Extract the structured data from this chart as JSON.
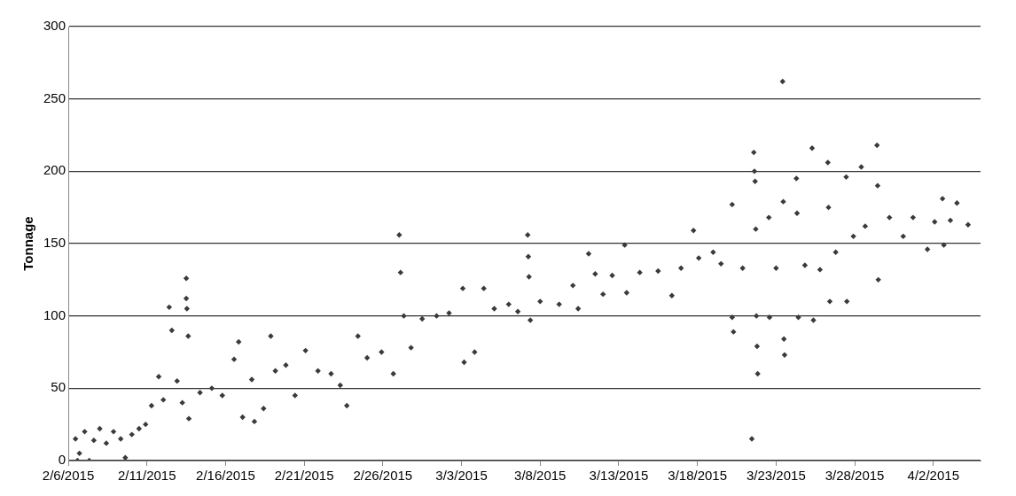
{
  "chart_data": {
    "type": "scatter",
    "ylabel": "Tonnage",
    "xlim": [
      "2015-02-06",
      "2015-04-05"
    ],
    "xticks": [
      {
        "value": "2015-02-06",
        "label": "2/6/2015"
      },
      {
        "value": "2015-02-11",
        "label": "2/11/2015"
      },
      {
        "value": "2015-02-16",
        "label": "2/16/2015"
      },
      {
        "value": "2015-02-21",
        "label": "2/21/2015"
      },
      {
        "value": "2015-02-26",
        "label": "2/26/2015"
      },
      {
        "value": "2015-03-03",
        "label": "3/3/2015"
      },
      {
        "value": "2015-03-08",
        "label": "3/8/2015"
      },
      {
        "value": "2015-03-13",
        "label": "3/13/2015"
      },
      {
        "value": "2015-03-18",
        "label": "3/18/2015"
      },
      {
        "value": "2015-03-23",
        "label": "3/23/2015"
      },
      {
        "value": "2015-03-28",
        "label": "3/28/2015"
      },
      {
        "value": "2015-04-02",
        "label": "4/2/2015"
      }
    ],
    "ylim": [
      0,
      300
    ],
    "yticks": [
      0,
      50,
      100,
      150,
      200,
      250,
      300
    ],
    "grid": "y",
    "legend": false,
    "marker": "diamond",
    "series": [
      {
        "color": "#3a3a3a",
        "x": [
          "2015-02-06T11:00",
          "2015-02-06T14:00",
          "2015-02-06T17:00",
          "2015-02-07T01:00",
          "2015-02-07T08:00",
          "2015-02-07T15:00",
          "2015-02-08T00:00",
          "2015-02-08T10:00",
          "2015-02-08T21:00",
          "2015-02-09T08:00",
          "2015-02-09T15:00",
          "2015-02-10T01:00",
          "2015-02-10T12:00",
          "2015-02-10T22:00",
          "2015-02-11T07:00",
          "2015-02-11T18:00",
          "2015-02-12T01:00",
          "2015-02-12T10:00",
          "2015-02-12T14:00",
          "2015-02-12T22:00",
          "2015-02-13T06:00",
          "2015-02-13T12:00",
          "2015-02-13T12:00",
          "2015-02-13T13:00",
          "2015-02-13T15:00",
          "2015-02-13T16:00",
          "2015-02-14T09:00",
          "2015-02-15T03:00",
          "2015-02-15T19:00",
          "2015-02-16T13:00",
          "2015-02-16T20:00",
          "2015-02-17T02:00",
          "2015-02-17T16:00",
          "2015-02-17T20:00",
          "2015-02-18T10:00",
          "2015-02-18T21:00",
          "2015-02-19T04:00",
          "2015-02-19T20:00",
          "2015-02-20T10:00",
          "2015-02-21T02:00",
          "2015-02-21T21:00",
          "2015-02-22T17:00",
          "2015-02-23T07:00",
          "2015-02-23T17:00",
          "2015-02-24T10:00",
          "2015-02-25T00:00",
          "2015-02-25T22:00",
          "2015-02-26T16:00",
          "2015-02-27T01:00",
          "2015-02-27T03:00",
          "2015-02-27T08:00",
          "2015-02-27T19:00",
          "2015-02-28T12:00",
          "2015-03-01T10:00",
          "2015-03-02T05:00",
          "2015-03-03T02:00",
          "2015-03-03T04:00",
          "2015-03-03T20:00",
          "2015-03-04T10:00",
          "2015-03-05T02:00",
          "2015-03-06T00:00",
          "2015-03-06T14:00",
          "2015-03-07T05:00",
          "2015-03-07T06:00",
          "2015-03-07T07:00",
          "2015-03-07T09:00",
          "2015-03-08T00:00",
          "2015-03-09T05:00",
          "2015-03-10T02:00",
          "2015-03-10T10:00",
          "2015-03-11T02:00",
          "2015-03-11T12:00",
          "2015-03-12T00:00",
          "2015-03-12T14:00",
          "2015-03-13T09:00",
          "2015-03-13T12:00",
          "2015-03-14T08:00",
          "2015-03-15T12:00",
          "2015-03-16T09:00",
          "2015-03-16T23:00",
          "2015-03-17T18:00",
          "2015-03-18T02:00",
          "2015-03-19T00:00",
          "2015-03-19T12:00",
          "2015-03-20T05:00",
          "2015-03-20T05:00",
          "2015-03-20T07:00",
          "2015-03-20T21:00",
          "2015-03-21T11:00",
          "2015-03-21T14:00",
          "2015-03-21T15:00",
          "2015-03-21T16:00",
          "2015-03-21T17:00",
          "2015-03-21T18:00",
          "2015-03-21T19:00",
          "2015-03-21T20:00",
          "2015-03-22T13:00",
          "2015-03-22T14:00",
          "2015-03-23T00:00",
          "2015-03-23T10:00",
          "2015-03-23T11:00",
          "2015-03-23T12:00",
          "2015-03-23T13:00",
          "2015-03-24T07:00",
          "2015-03-24T08:00",
          "2015-03-24T10:00",
          "2015-03-24T20:00",
          "2015-03-25T07:00",
          "2015-03-25T09:00",
          "2015-03-25T19:00",
          "2015-03-26T07:00",
          "2015-03-26T08:00",
          "2015-03-26T10:00",
          "2015-03-26T19:00",
          "2015-03-27T11:00",
          "2015-03-27T12:00",
          "2015-03-27T22:00",
          "2015-03-28T10:00",
          "2015-03-28T16:00",
          "2015-03-29T10:00",
          "2015-03-29T11:00",
          "2015-03-29T12:00",
          "2015-03-30T05:00",
          "2015-03-31T02:00",
          "2015-03-31T17:00",
          "2015-04-01T15:00",
          "2015-04-02T02:00",
          "2015-04-02T14:00",
          "2015-04-02T16:00",
          "2015-04-03T02:00",
          "2015-04-03T12:00",
          "2015-04-04T05:00"
        ],
        "values": [
          15,
          0,
          5,
          20,
          0,
          14,
          22,
          12,
          20,
          15,
          2,
          18,
          22,
          25,
          38,
          58,
          42,
          106,
          90,
          55,
          40,
          126,
          112,
          105,
          86,
          29,
          47,
          50,
          45,
          70,
          82,
          30,
          56,
          27,
          36,
          86,
          62,
          66,
          45,
          76,
          62,
          60,
          52,
          38,
          86,
          71,
          75,
          60,
          156,
          130,
          100,
          78,
          98,
          100,
          102,
          119,
          68,
          75,
          119,
          105,
          108,
          103,
          156,
          141,
          127,
          97,
          110,
          108,
          121,
          105,
          143,
          129,
          115,
          128,
          149,
          116,
          130,
          131,
          114,
          133,
          159,
          140,
          144,
          136,
          177,
          99,
          89,
          133,
          15,
          213,
          200,
          193,
          160,
          100,
          79,
          60,
          168,
          99,
          133,
          262,
          179,
          84,
          73,
          195,
          171,
          99,
          135,
          216,
          97,
          132,
          206,
          175,
          110,
          144,
          196,
          110,
          155,
          203,
          162,
          218,
          190,
          125,
          168,
          155,
          168,
          146,
          165,
          181,
          149,
          166,
          178,
          163
        ]
      }
    ]
  }
}
